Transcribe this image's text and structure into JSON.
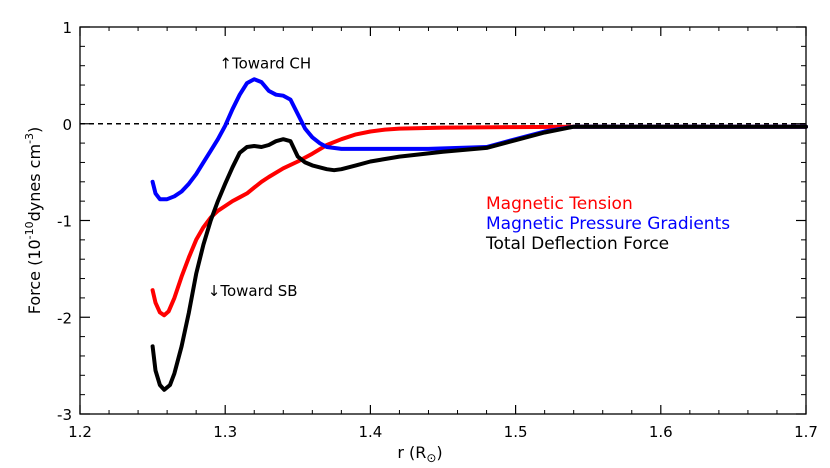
{
  "chart_data": {
    "type": "line",
    "title": "",
    "xlabel": "r (R",
    "xlabel_sub": "⊙",
    "xlabel_close": ")",
    "ylabel": "Force (10",
    "ylabel_exp1": "-10",
    "ylabel_mid": "dynes cm",
    "ylabel_exp2": "-3",
    "ylabel_close": ")",
    "xlim": [
      1.2,
      1.7
    ],
    "ylim": [
      -3,
      1
    ],
    "xticks": [
      1.2,
      1.3,
      1.4,
      1.5,
      1.6,
      1.7
    ],
    "xtick_labels": [
      "1.2",
      "1.3",
      "1.4",
      "1.5",
      "1.6",
      "1.7"
    ],
    "yticks": [
      -3,
      -2,
      -1,
      0,
      1
    ],
    "ytick_labels": [
      "-3",
      "-2",
      "-1",
      "0",
      "1"
    ],
    "zero_line": {
      "y": 0,
      "style": "dashed"
    },
    "legend_position": "right-middle",
    "series": [
      {
        "name": "Magnetic Tension",
        "color": "#ff0000",
        "points": [
          [
            1.25,
            -1.72
          ],
          [
            1.252,
            -1.85
          ],
          [
            1.255,
            -1.95
          ],
          [
            1.258,
            -1.98
          ],
          [
            1.261,
            -1.94
          ],
          [
            1.265,
            -1.8
          ],
          [
            1.27,
            -1.58
          ],
          [
            1.275,
            -1.38
          ],
          [
            1.28,
            -1.2
          ],
          [
            1.285,
            -1.07
          ],
          [
            1.29,
            -0.97
          ],
          [
            1.295,
            -0.9
          ],
          [
            1.3,
            -0.85
          ],
          [
            1.305,
            -0.8
          ],
          [
            1.31,
            -0.76
          ],
          [
            1.315,
            -0.72
          ],
          [
            1.32,
            -0.66
          ],
          [
            1.325,
            -0.6
          ],
          [
            1.33,
            -0.55
          ],
          [
            1.34,
            -0.46
          ],
          [
            1.35,
            -0.39
          ],
          [
            1.36,
            -0.31
          ],
          [
            1.37,
            -0.22
          ],
          [
            1.38,
            -0.16
          ],
          [
            1.39,
            -0.11
          ],
          [
            1.4,
            -0.08
          ],
          [
            1.41,
            -0.06
          ],
          [
            1.42,
            -0.05
          ],
          [
            1.45,
            -0.04
          ],
          [
            1.5,
            -0.035
          ],
          [
            1.54,
            -0.03
          ],
          [
            1.56,
            -0.03
          ],
          [
            1.7,
            -0.03
          ]
        ]
      },
      {
        "name": "Magnetic Pressure Gradients",
        "color": "#0000ff",
        "points": [
          [
            1.25,
            -0.6
          ],
          [
            1.252,
            -0.72
          ],
          [
            1.255,
            -0.78
          ],
          [
            1.26,
            -0.78
          ],
          [
            1.265,
            -0.75
          ],
          [
            1.27,
            -0.7
          ],
          [
            1.275,
            -0.62
          ],
          [
            1.28,
            -0.52
          ],
          [
            1.285,
            -0.4
          ],
          [
            1.29,
            -0.28
          ],
          [
            1.295,
            -0.16
          ],
          [
            1.3,
            -0.02
          ],
          [
            1.305,
            0.15
          ],
          [
            1.31,
            0.3
          ],
          [
            1.315,
            0.42
          ],
          [
            1.32,
            0.46
          ],
          [
            1.325,
            0.43
          ],
          [
            1.33,
            0.34
          ],
          [
            1.335,
            0.3
          ],
          [
            1.34,
            0.29
          ],
          [
            1.345,
            0.25
          ],
          [
            1.35,
            0.1
          ],
          [
            1.355,
            -0.05
          ],
          [
            1.36,
            -0.14
          ],
          [
            1.365,
            -0.2
          ],
          [
            1.37,
            -0.24
          ],
          [
            1.38,
            -0.26
          ],
          [
            1.4,
            -0.26
          ],
          [
            1.44,
            -0.26
          ],
          [
            1.48,
            -0.24
          ],
          [
            1.5,
            -0.16
          ],
          [
            1.52,
            -0.08
          ],
          [
            1.54,
            -0.03
          ],
          [
            1.56,
            -0.03
          ],
          [
            1.7,
            -0.03
          ]
        ]
      },
      {
        "name": "Total Deflection Force",
        "color": "#000000",
        "points": [
          [
            1.25,
            -2.3
          ],
          [
            1.252,
            -2.55
          ],
          [
            1.255,
            -2.7
          ],
          [
            1.258,
            -2.75
          ],
          [
            1.262,
            -2.7
          ],
          [
            1.265,
            -2.58
          ],
          [
            1.27,
            -2.3
          ],
          [
            1.275,
            -1.95
          ],
          [
            1.28,
            -1.55
          ],
          [
            1.285,
            -1.25
          ],
          [
            1.29,
            -1.0
          ],
          [
            1.295,
            -0.8
          ],
          [
            1.3,
            -0.62
          ],
          [
            1.305,
            -0.45
          ],
          [
            1.31,
            -0.3
          ],
          [
            1.315,
            -0.24
          ],
          [
            1.32,
            -0.23
          ],
          [
            1.325,
            -0.24
          ],
          [
            1.33,
            -0.22
          ],
          [
            1.335,
            -0.18
          ],
          [
            1.34,
            -0.16
          ],
          [
            1.345,
            -0.18
          ],
          [
            1.35,
            -0.34
          ],
          [
            1.355,
            -0.4
          ],
          [
            1.36,
            -0.43
          ],
          [
            1.37,
            -0.47
          ],
          [
            1.375,
            -0.48
          ],
          [
            1.38,
            -0.47
          ],
          [
            1.39,
            -0.43
          ],
          [
            1.4,
            -0.39
          ],
          [
            1.42,
            -0.34
          ],
          [
            1.45,
            -0.29
          ],
          [
            1.48,
            -0.25
          ],
          [
            1.5,
            -0.17
          ],
          [
            1.52,
            -0.09
          ],
          [
            1.54,
            -0.03
          ],
          [
            1.56,
            -0.03
          ],
          [
            1.7,
            -0.03
          ]
        ]
      }
    ],
    "annotations": [
      {
        "text": "↑Toward CH",
        "x": 1.296,
        "y": 0.57
      },
      {
        "text": "↓Toward SB",
        "x": 1.288,
        "y": -1.78
      }
    ]
  }
}
